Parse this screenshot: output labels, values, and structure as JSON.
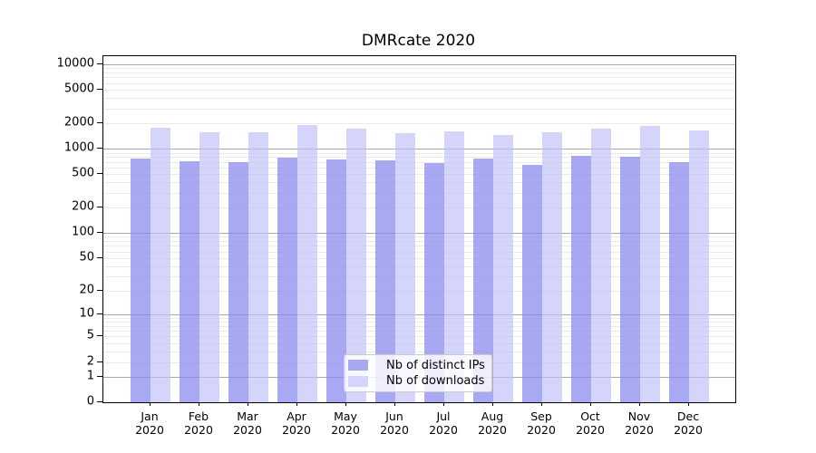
{
  "chart_data": {
    "type": "bar",
    "title": "DMRcate 2020",
    "categories": [
      "Jan",
      "Feb",
      "Mar",
      "Apr",
      "May",
      "Jun",
      "Jul",
      "Aug",
      "Sep",
      "Oct",
      "Nov",
      "Dec"
    ],
    "year_label": "2020",
    "series": [
      {
        "name": "Nb of distinct IPs",
        "color": "rgba(135,135,238,0.72)",
        "swatch_color": "#a8a8f0",
        "values": [
          760,
          710,
          700,
          780,
          750,
          730,
          680,
          770,
          650,
          830,
          800,
          700
        ]
      },
      {
        "name": "Nb of downloads",
        "color": "rgba(190,190,250,0.65)",
        "swatch_color": "#d5d5fb",
        "values": [
          1760,
          1570,
          1580,
          1930,
          1730,
          1530,
          1590,
          1460,
          1570,
          1750,
          1880,
          1660
        ]
      }
    ],
    "y_ticks": [
      "10000",
      "5000",
      "2000",
      "1000",
      "500",
      "200",
      "100",
      "50",
      "20",
      "10",
      "5",
      "2",
      "1",
      "0"
    ],
    "y_scale": "log10(1+x)",
    "ylim": [
      0,
      12500
    ],
    "grid": "both",
    "legend_position": "bottom-center"
  },
  "colors": {
    "grid_minor": "#ebebeb",
    "grid_major": "#a8a8a8",
    "spine": "#000000",
    "background": "#ffffff",
    "legend_border": "#cccccc"
  }
}
